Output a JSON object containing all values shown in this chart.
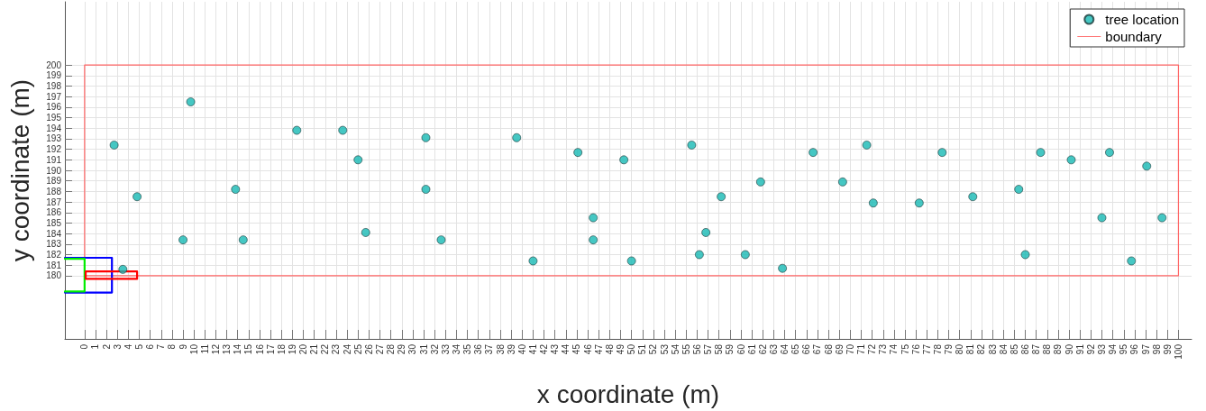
{
  "chart_data": {
    "type": "scatter",
    "xlabel": "x coordinate (m)",
    "ylabel": "y coordinate (m)",
    "xlim": [
      -1.8,
      101.2
    ],
    "ylim": [
      174,
      206
    ],
    "xticks": [
      0,
      1,
      2,
      3,
      4,
      5,
      6,
      7,
      8,
      9,
      10,
      11,
      12,
      13,
      14,
      15,
      16,
      17,
      18,
      19,
      20,
      21,
      22,
      23,
      24,
      25,
      26,
      27,
      28,
      29,
      30,
      31,
      32,
      33,
      34,
      35,
      36,
      37,
      38,
      39,
      40,
      41,
      42,
      43,
      44,
      45,
      46,
      47,
      48,
      49,
      50,
      51,
      52,
      53,
      54,
      55,
      56,
      57,
      58,
      59,
      60,
      61,
      62,
      63,
      64,
      65,
      66,
      67,
      68,
      69,
      70,
      71,
      72,
      73,
      74,
      75,
      76,
      77,
      78,
      79,
      80,
      81,
      82,
      83,
      84,
      85,
      86,
      87,
      88,
      89,
      90,
      91,
      92,
      93,
      94,
      95,
      96,
      97,
      98,
      99,
      100
    ],
    "yticks": [
      180,
      181,
      182,
      183,
      184,
      185,
      186,
      187,
      188,
      189,
      190,
      191,
      192,
      193,
      194,
      195,
      196,
      197,
      198,
      199,
      200
    ],
    "grid": true,
    "legend": "top right",
    "marker": "circle",
    "series": [
      {
        "name": "tree location",
        "color": "#17b9b4",
        "x": [
          2.7,
          4.8,
          3.5,
          9.0,
          9.7,
          13.8,
          14.5,
          19.4,
          23.6,
          25.0,
          25.7,
          31.2,
          31.2,
          32.6,
          39.5,
          41.0,
          45.1,
          46.5,
          46.5,
          49.3,
          50.0,
          55.5,
          56.2,
          56.8,
          58.2,
          60.4,
          61.8,
          63.8,
          66.6,
          69.3,
          71.5,
          72.1,
          76.3,
          78.4,
          81.2,
          85.4,
          86.0,
          87.4,
          90.2,
          93.0,
          93.7,
          95.7,
          97.1,
          98.5
        ],
        "values": [
          192.4,
          187.5,
          180.6,
          183.4,
          196.5,
          188.2,
          183.4,
          193.8,
          193.8,
          191.0,
          184.1,
          193.1,
          188.2,
          183.4,
          193.1,
          181.4,
          191.7,
          185.5,
          183.4,
          191.0,
          181.4,
          192.4,
          182.0,
          184.1,
          187.5,
          182.0,
          188.9,
          180.7,
          191.7,
          188.9,
          192.4,
          186.9,
          186.9,
          191.7,
          187.5,
          188.2,
          182.0,
          191.7,
          191.0,
          185.5,
          191.7,
          181.4,
          190.4,
          185.5
        ]
      },
      {
        "name": "boundary",
        "type": "line",
        "color": "#ff6666",
        "marker": "none",
        "x": [
          50,
          100,
          100,
          0,
          0,
          49.9
        ],
        "values": [
          180,
          180,
          200,
          200,
          180,
          180
        ]
      },
      {
        "type": "line",
        "color": "#0000ff",
        "marker": "none",
        "x": [
          -1.8,
          2.5,
          2.5,
          -1.8
        ],
        "values": [
          181.7,
          181.7,
          178.4,
          178.4
        ]
      },
      {
        "type": "line",
        "color": "#00ee00",
        "marker": "none",
        "x": [
          -1.8,
          0,
          0,
          -1.8
        ],
        "values": [
          181.6,
          181.6,
          178.5,
          178.5
        ]
      },
      {
        "type": "line",
        "color": "#ff0000",
        "marker": "none",
        "x": [
          2.5,
          4.8,
          4.8,
          0.1,
          0.1,
          2.4
        ],
        "values": [
          180.4,
          180.4,
          179.7,
          179.7,
          180.4,
          180.4
        ]
      }
    ]
  }
}
